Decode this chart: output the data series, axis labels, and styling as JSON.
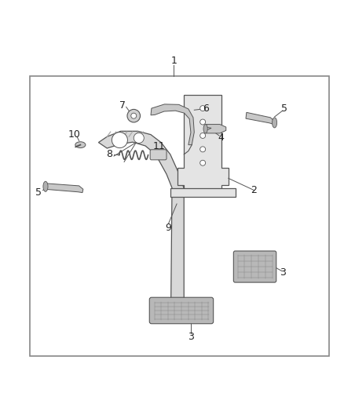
{
  "bg_color": "#ffffff",
  "border_color": "#aaaaaa",
  "line_color": "#555555",
  "dark_color": "#222222",
  "label_fontsize": 9,
  "part_fill": "#e0e0e0",
  "part_fill2": "#c8c8c8",
  "pad_fill": "#b8b8b8",
  "spring_color": "#444444"
}
